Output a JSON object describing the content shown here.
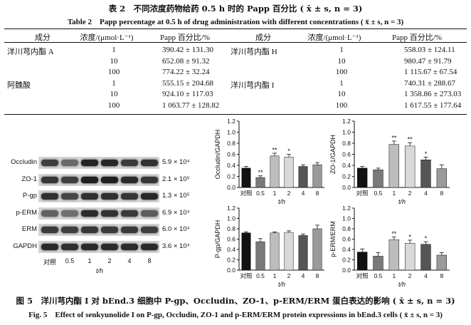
{
  "table": {
    "title_cn": "表 2　不同浓度药物给药 0.5 h 时的 Papp 百分比 ( x̄ ± s, n = 3)",
    "title_en": "Table 2　Papp percentage at 0.5 h of drug administration with different concentrations ( x̄ ± s, n = 3)",
    "headers": [
      "成分",
      "浓度/(μmol·L⁻¹)",
      "Papp 百分比/%",
      "成分",
      "浓度/(μmol·L⁻¹)",
      "Papp 百分比/%"
    ],
    "left": [
      {
        "drug": "洋川芎内酯 A",
        "conc": "1",
        "value": "390.42 ± 131.30"
      },
      {
        "drug": "",
        "conc": "10",
        "value": "652.08 ± 91.32"
      },
      {
        "drug": "",
        "conc": "100",
        "value": "774.22 ± 32.24"
      },
      {
        "drug": "阿魏酸",
        "conc": "1",
        "value": "555.15 ± 204.68"
      },
      {
        "drug": "",
        "conc": "10",
        "value": "924.10 ± 117.03"
      },
      {
        "drug": "",
        "conc": "100",
        "value": "1 063.77 ± 128.82"
      }
    ],
    "right": [
      {
        "drug": "洋川芎内酯 H",
        "conc": "1",
        "value": "558.03 ± 124.11"
      },
      {
        "drug": "",
        "conc": "10",
        "value": "980.47 ± 91.79"
      },
      {
        "drug": "",
        "conc": "100",
        "value": "1 115.67 ± 67.54"
      },
      {
        "drug": "洋川芎内酯 I",
        "conc": "1",
        "value": "740.31 ± 288.67"
      },
      {
        "drug": "",
        "conc": "10",
        "value": "1 358.86 ± 273.03"
      },
      {
        "drug": "",
        "conc": "100",
        "value": "1 617.55 ± 177.64"
      }
    ]
  },
  "blot": {
    "proteins": [
      {
        "name": "Occludin",
        "mw": "5.9 × 10⁴"
      },
      {
        "name": "ZO-1",
        "mw": "2.1 × 10⁵"
      },
      {
        "name": "P-gp",
        "mw": "1.3 × 10⁵"
      },
      {
        "name": "p-ERM",
        "mw": "6.9 × 10⁴"
      },
      {
        "name": "ERM",
        "mw": "6.0 × 10⁴"
      },
      {
        "name": "GAPDH",
        "mw": "3.6 × 10⁴"
      }
    ],
    "lanes": [
      "对照",
      "0.5",
      "1",
      "2",
      "4",
      "8"
    ],
    "xlabel": "t/h"
  },
  "chart_data": [
    {
      "type": "bar",
      "ylabel": "Occludin/GAPDH",
      "xlabel": "t/h",
      "categories": [
        "对照",
        "0.5",
        "1",
        "2",
        "4",
        "8"
      ],
      "values": [
        0.35,
        0.18,
        0.57,
        0.55,
        0.38,
        0.41
      ],
      "errors": [
        0.03,
        0.03,
        0.05,
        0.05,
        0.03,
        0.04
      ],
      "marks": [
        "",
        "**",
        "**",
        "*",
        "",
        ""
      ],
      "ylim": [
        0,
        1.2
      ],
      "yticks": [
        "0.0",
        "0.2",
        "0.4",
        "0.6",
        "0.8",
        "1.0",
        "1.2"
      ]
    },
    {
      "type": "bar",
      "ylabel": "ZO-1/GAPDH",
      "xlabel": "t/h",
      "categories": [
        "对照",
        "0.5",
        "1",
        "2",
        "4",
        "8"
      ],
      "values": [
        0.35,
        0.32,
        0.78,
        0.75,
        0.5,
        0.34
      ],
      "errors": [
        0.03,
        0.03,
        0.06,
        0.06,
        0.05,
        0.07
      ],
      "marks": [
        "",
        "",
        "**",
        "**",
        "*",
        ""
      ],
      "ylim": [
        0,
        1.2
      ],
      "yticks": [
        "0.0",
        "0.2",
        "0.4",
        "0.6",
        "0.8",
        "1.0",
        "1.2"
      ]
    },
    {
      "type": "bar",
      "ylabel": "P-gp/GAPDH",
      "xlabel": "t/h",
      "categories": [
        "对照",
        "0.5",
        "1",
        "2",
        "4",
        "8"
      ],
      "values": [
        0.72,
        0.55,
        0.72,
        0.73,
        0.67,
        0.8
      ],
      "errors": [
        0.02,
        0.06,
        0.02,
        0.03,
        0.03,
        0.07
      ],
      "marks": [
        "",
        "",
        "",
        "",
        "",
        ""
      ],
      "ylim": [
        0,
        1.2
      ],
      "yticks": [
        "0.0",
        "0.2",
        "0.4",
        "0.6",
        "0.8",
        "1.0",
        "1.2"
      ]
    },
    {
      "type": "bar",
      "ylabel": "p-ERM/ERM",
      "xlabel": "t/h",
      "categories": [
        "对照",
        "0.5",
        "1",
        "2",
        "4",
        "8"
      ],
      "values": [
        0.35,
        0.27,
        0.59,
        0.52,
        0.5,
        0.29
      ],
      "errors": [
        0.06,
        0.07,
        0.05,
        0.06,
        0.05,
        0.05
      ],
      "marks": [
        "",
        "",
        "**",
        "*",
        "*",
        ""
      ],
      "ylim": [
        0,
        1.2
      ],
      "yticks": [
        "0.0",
        "0.2",
        "0.4",
        "0.6",
        "0.8",
        "1.0",
        "1.2"
      ]
    }
  ],
  "colors": {
    "bars": [
      "#111111",
      "#7a7a7a",
      "#bdbdbd",
      "#d9d9d9",
      "#555555",
      "#9a9a9a"
    ]
  },
  "figure": {
    "caption_cn": "图 5　洋川芎内酯 I 对 bEnd.3 细胞中 P-gp、Occludin、ZO-1、p-ERM/ERM 蛋白表达的影响 ( x̄ ± s, n = 3)",
    "caption_en": "Fig. 5　Effect of senkyunolide I on P-gp, Occludin, ZO-1 and p-ERM/ERM protein expressions in bEnd.3 cells ( x̄ ± s, n = 3)"
  }
}
